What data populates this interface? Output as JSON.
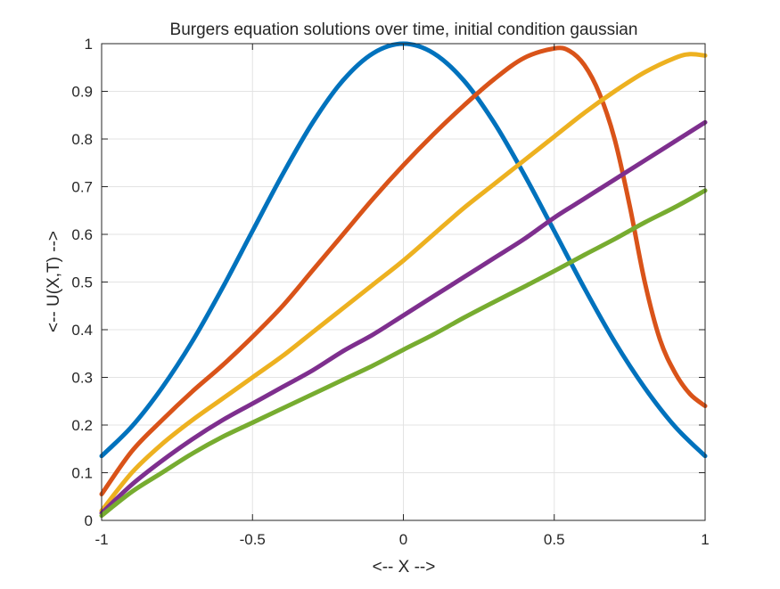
{
  "chart_data": {
    "type": "line",
    "title": "Burgers equation solutions over time, initial condition gaussian",
    "xlabel": "<-- X -->",
    "ylabel": "<-- U(X,T) -->",
    "xlim": [
      -1,
      1
    ],
    "ylim": [
      0,
      1
    ],
    "grid": true,
    "xticks": [
      -1,
      -0.5,
      0,
      0.5,
      1
    ],
    "xtick_labels": [
      "-1",
      "-0.5",
      "0",
      "0.5",
      "1"
    ],
    "yticks": [
      0,
      0.1,
      0.2,
      0.3,
      0.4,
      0.5,
      0.6,
      0.7,
      0.8,
      0.9,
      1
    ],
    "ytick_labels": [
      "0",
      "0.1",
      "0.2",
      "0.3",
      "0.4",
      "0.5",
      "0.6",
      "0.7",
      "0.8",
      "0.9",
      "1"
    ],
    "series": [
      {
        "color": "#0072BD",
        "x": [
          -1,
          -0.9,
          -0.8,
          -0.7,
          -0.6,
          -0.5,
          -0.4,
          -0.3,
          -0.2,
          -0.1,
          0,
          0.1,
          0.2,
          0.3,
          0.4,
          0.5,
          0.6,
          0.7,
          0.8,
          0.9,
          1
        ],
        "y": [
          0.135,
          0.197,
          0.278,
          0.375,
          0.487,
          0.607,
          0.726,
          0.835,
          0.923,
          0.98,
          1.0,
          0.98,
          0.923,
          0.835,
          0.726,
          0.607,
          0.487,
          0.375,
          0.278,
          0.197,
          0.135
        ]
      },
      {
        "color": "#D95319",
        "x": [
          -1,
          -0.9,
          -0.8,
          -0.7,
          -0.6,
          -0.5,
          -0.4,
          -0.3,
          -0.2,
          -0.1,
          0,
          0.1,
          0.2,
          0.3,
          0.4,
          0.5,
          0.55,
          0.6,
          0.65,
          0.7,
          0.75,
          0.8,
          0.85,
          0.9,
          0.95,
          1
        ],
        "y": [
          0.055,
          0.145,
          0.21,
          0.27,
          0.325,
          0.385,
          0.45,
          0.525,
          0.6,
          0.675,
          0.745,
          0.81,
          0.87,
          0.925,
          0.97,
          0.99,
          0.985,
          0.955,
          0.895,
          0.8,
          0.66,
          0.5,
          0.38,
          0.31,
          0.265,
          0.24
        ]
      },
      {
        "color": "#EDB120",
        "x": [
          -1,
          -0.9,
          -0.8,
          -0.7,
          -0.6,
          -0.5,
          -0.4,
          -0.3,
          -0.2,
          -0.1,
          0,
          0.1,
          0.2,
          0.3,
          0.4,
          0.5,
          0.6,
          0.7,
          0.8,
          0.9,
          0.95,
          1
        ],
        "y": [
          0.02,
          0.1,
          0.16,
          0.21,
          0.255,
          0.3,
          0.345,
          0.395,
          0.445,
          0.495,
          0.545,
          0.6,
          0.655,
          0.705,
          0.755,
          0.805,
          0.855,
          0.9,
          0.94,
          0.97,
          0.978,
          0.975
        ]
      },
      {
        "color": "#7E2F8E",
        "x": [
          -1,
          -0.9,
          -0.8,
          -0.7,
          -0.6,
          -0.5,
          -0.4,
          -0.3,
          -0.2,
          -0.1,
          0,
          0.1,
          0.2,
          0.3,
          0.4,
          0.5,
          0.6,
          0.7,
          0.8,
          0.9,
          1
        ],
        "y": [
          0.015,
          0.075,
          0.125,
          0.17,
          0.21,
          0.245,
          0.28,
          0.315,
          0.355,
          0.39,
          0.43,
          0.47,
          0.51,
          0.55,
          0.59,
          0.635,
          0.675,
          0.715,
          0.755,
          0.795,
          0.835
        ]
      },
      {
        "color": "#77AC30",
        "x": [
          -1,
          -0.9,
          -0.8,
          -0.7,
          -0.6,
          -0.5,
          -0.4,
          -0.3,
          -0.2,
          -0.1,
          0,
          0.1,
          0.2,
          0.3,
          0.4,
          0.5,
          0.6,
          0.7,
          0.8,
          0.9,
          1
        ],
        "y": [
          0.01,
          0.06,
          0.1,
          0.14,
          0.175,
          0.205,
          0.235,
          0.265,
          0.295,
          0.325,
          0.358,
          0.39,
          0.425,
          0.458,
          0.49,
          0.523,
          0.557,
          0.59,
          0.625,
          0.657,
          0.692
        ]
      }
    ]
  }
}
